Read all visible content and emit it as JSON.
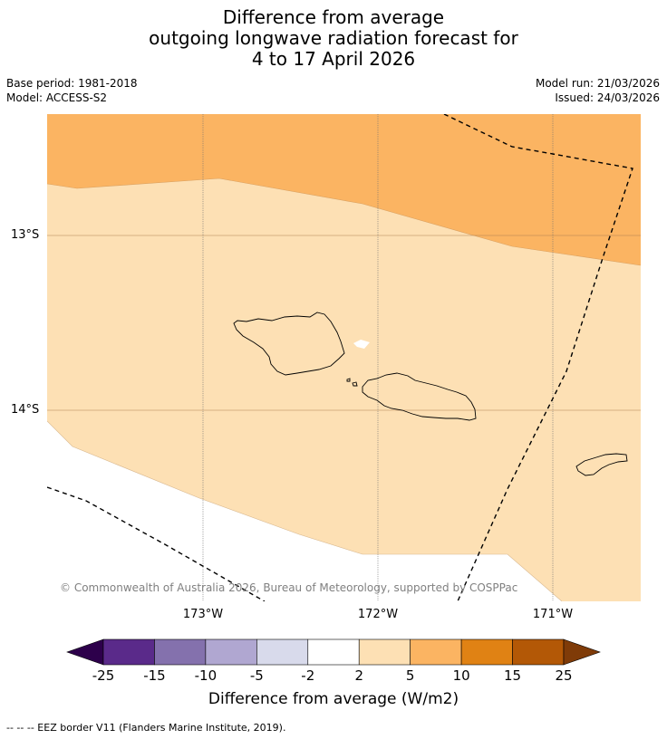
{
  "header": {
    "title_lines": [
      "Difference from average",
      "outgoing longwave radiation forecast for",
      "4 to 17 April 2026"
    ],
    "base_period": "Base period: 1981-2018",
    "model": "Model: ACCESS-S2",
    "model_run": "Model run: 21/03/2026",
    "issued": "Issued: 24/03/2026"
  },
  "map": {
    "lat_labels": [
      "13°S",
      "14°S"
    ],
    "lon_labels": [
      "173°W",
      "172°W",
      "171°W"
    ],
    "copyright": "© Commonwealth of Australia 2026, Bureau of Meteorology, supported by COSPPac",
    "regions": [
      {
        "name": "5 to 10 W/m2",
        "color": "#fbb462"
      },
      {
        "name": "2 to 5 W/m2",
        "color": "#fde0b4"
      },
      {
        "name": "-2 to 2 W/m2",
        "color": "#ffffff"
      }
    ]
  },
  "colorbar": {
    "colors": [
      "#2d004b",
      "#5a2a8a",
      "#8471ad",
      "#b0a7d1",
      "#d8daeb",
      "#ffffff",
      "#fde0b4",
      "#fbb462",
      "#e08214",
      "#b35806",
      "#7f3b08"
    ],
    "ticks": [
      "-25",
      "-15",
      "-10",
      "-5",
      "-2",
      "2",
      "5",
      "10",
      "15",
      "25"
    ],
    "label": "Difference from average (W/m2)"
  },
  "legend": {
    "eez_text": "--  --  -- EEZ border V11 (Flanders Marine Institute, 2019)."
  }
}
